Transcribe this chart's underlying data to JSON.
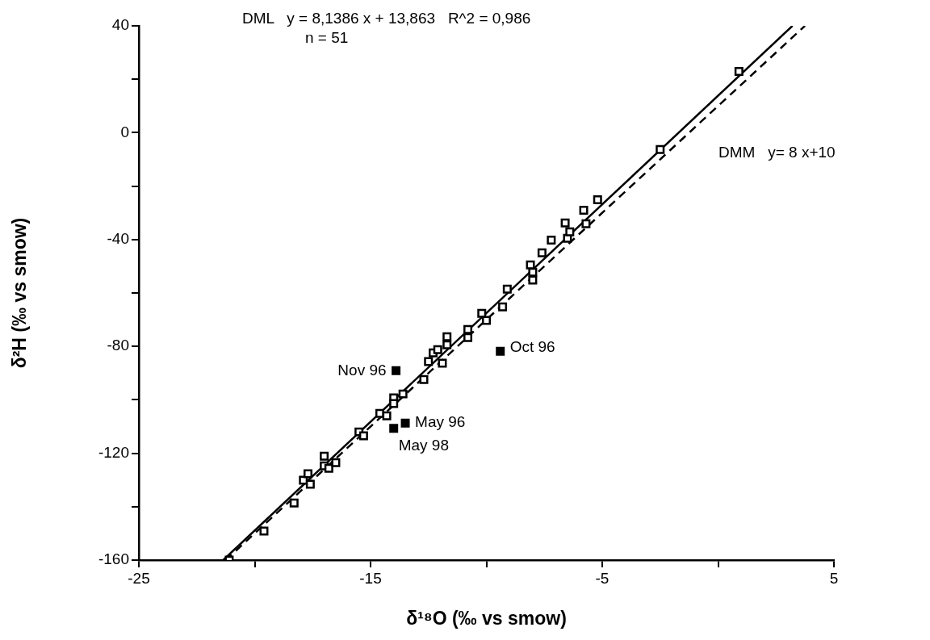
{
  "chart_data": {
    "type": "scatter",
    "xlabel": "δ¹⁸O (‰ vs smow)",
    "ylabel": "δ²H (‰ vs smow)",
    "xlim": [
      -25,
      5
    ],
    "xticks": [
      -25,
      {
        "value": -20,
        "label": null
      },
      -15,
      {
        "value": -10,
        "label": null
      },
      -5,
      {
        "value": 0,
        "label": null
      },
      5
    ],
    "ylim": [
      -160,
      40
    ],
    "yticks": [
      -160,
      {
        "value": -140,
        "label": null
      },
      -120,
      {
        "value": -100,
        "label": null
      },
      -80,
      {
        "value": -60,
        "label": null
      },
      -40,
      {
        "value": -20,
        "label": null
      },
      0,
      {
        "value": 20,
        "label": null
      },
      40
    ],
    "grid": false,
    "legend": false,
    "series": [
      {
        "marker": "square",
        "color": "#000000",
        "x": [
          -21.1,
          -19.6,
          -18.3,
          -17.9,
          -17.7,
          -17.6,
          -17.0,
          -17.0,
          -16.8,
          -16.5,
          -15.5,
          -15.3,
          -14.6,
          -14.3,
          -14.0,
          -14.0,
          -13.6,
          -12.7,
          -12.6,
          -12.5,
          -12.3,
          -12.1,
          -11.9,
          -11.7,
          -11.7,
          -10.8,
          -10.8,
          -10.2,
          -10.0,
          -9.3,
          -9.1,
          -8.1,
          -8.0,
          -8.0,
          -7.6,
          -7.2,
          -6.6,
          -6.5,
          -6.4,
          -5.8,
          -5.7,
          -5.2,
          -2.5,
          0.9
        ],
        "values": [
          -160,
          -149.1,
          -138.6,
          -130.1,
          -127.7,
          -131.6,
          -124.7,
          -121.1,
          -125.6,
          -123.5,
          -112.0,
          -113.5,
          -105.1,
          -106.0,
          -99.3,
          -101.4,
          -97.8,
          -92.4,
          null,
          -85.7,
          -82.4,
          -81.2,
          -86.3,
          -76.4,
          -79.4,
          -73.7,
          -76.7,
          -67.6,
          -70.3,
          -65.2,
          -58.6,
          -49.5,
          -52.2,
          -55.2,
          -45.0,
          -40.2,
          -33.8,
          -39.5,
          -37.1,
          -29.0,
          -34.1,
          -25.1,
          -6.3,
          22.9
        ]
      },
      {
        "marker": "square",
        "color": "#000000",
        "x": [
          -13.9,
          -13.5,
          -14.0,
          -9.4
        ],
        "values": [
          -89.1,
          -108.7,
          -110.7,
          -81.8
        ]
      },
      {
        "type": "line",
        "marker": "none",
        "color": "#000000",
        "line_style": "solid",
        "x": [
          -21.36,
          3.21
        ],
        "values": [
          -160,
          40
        ]
      },
      {
        "type": "line",
        "marker": "none",
        "color": "#000000",
        "line_style": "dashed",
        "x": [
          -21.25,
          3.75
        ],
        "values": [
          -160,
          40
        ]
      }
    ],
    "annotations": [
      "DML   y = 8,1386 x + 13,863   R^2 = 0,986",
      "n = 51",
      "DMM   y= 8 x+10",
      {
        "text": "Nov 96",
        "x": -13.9,
        "y": -89.1
      },
      {
        "text": "Oct 96",
        "x": -9.4,
        "y": -81.8
      },
      {
        "text": "May 96",
        "x": -13.5,
        "y": -108.7
      },
      {
        "text": "May 98",
        "x": -14.0,
        "y": -110.7
      }
    ]
  }
}
